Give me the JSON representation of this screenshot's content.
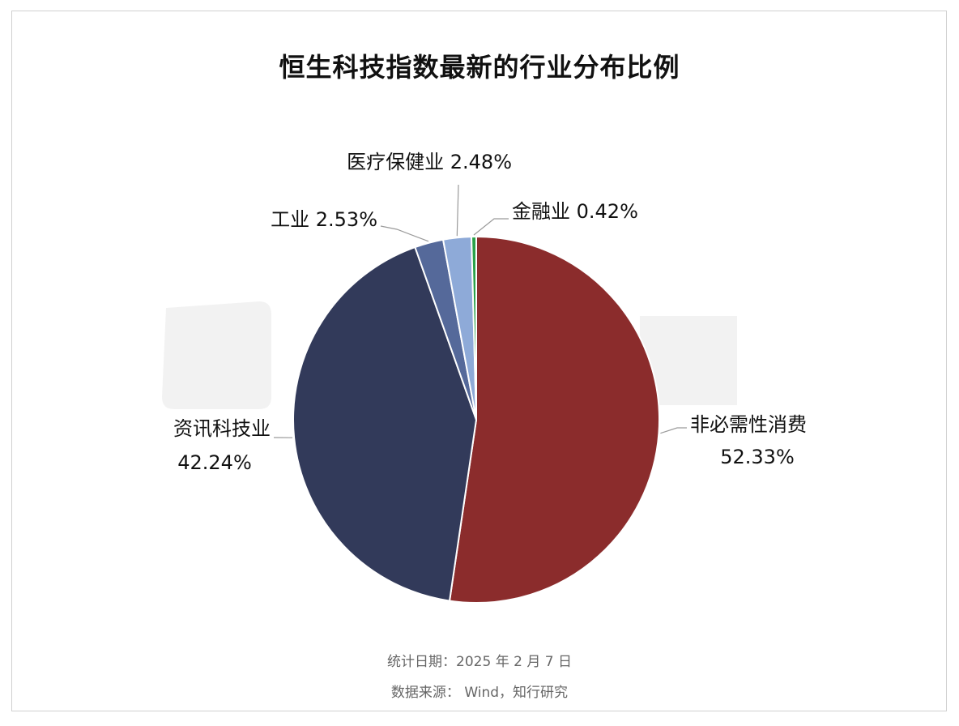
{
  "title": "恒生科技指数最新的行业分布比例",
  "chart_data": {
    "type": "pie",
    "title": "恒生科技指数最新的行业分布比例",
    "start_angle_deg": 0,
    "direction": "clockwise",
    "slices": [
      {
        "name": "非必需性消费",
        "value": 52.33,
        "label_line1": "非必需性消费",
        "label_line2": "52.33%",
        "color": "#8b2c2c"
      },
      {
        "name": "资讯科技业",
        "value": 42.24,
        "label_line1": "资讯科技业",
        "label_line2": "42.24%",
        "color": "#323a5a"
      },
      {
        "name": "工业",
        "value": 2.53,
        "label_line1": "工业 2.53%",
        "label_line2": "",
        "color": "#55699a"
      },
      {
        "name": "医疗保健业",
        "value": 2.48,
        "label_line1": "医疗保健业 2.48%",
        "label_line2": "",
        "color": "#8eaad8"
      },
      {
        "name": "金融业",
        "value": 0.42,
        "label_line1": "金融业 0.42%",
        "label_line2": "",
        "color": "#2aa24a"
      }
    ]
  },
  "footer": {
    "stat_date": "统计日期：2025 年 2 月 7 日",
    "source": "数据来源： Wind，知行研究"
  }
}
